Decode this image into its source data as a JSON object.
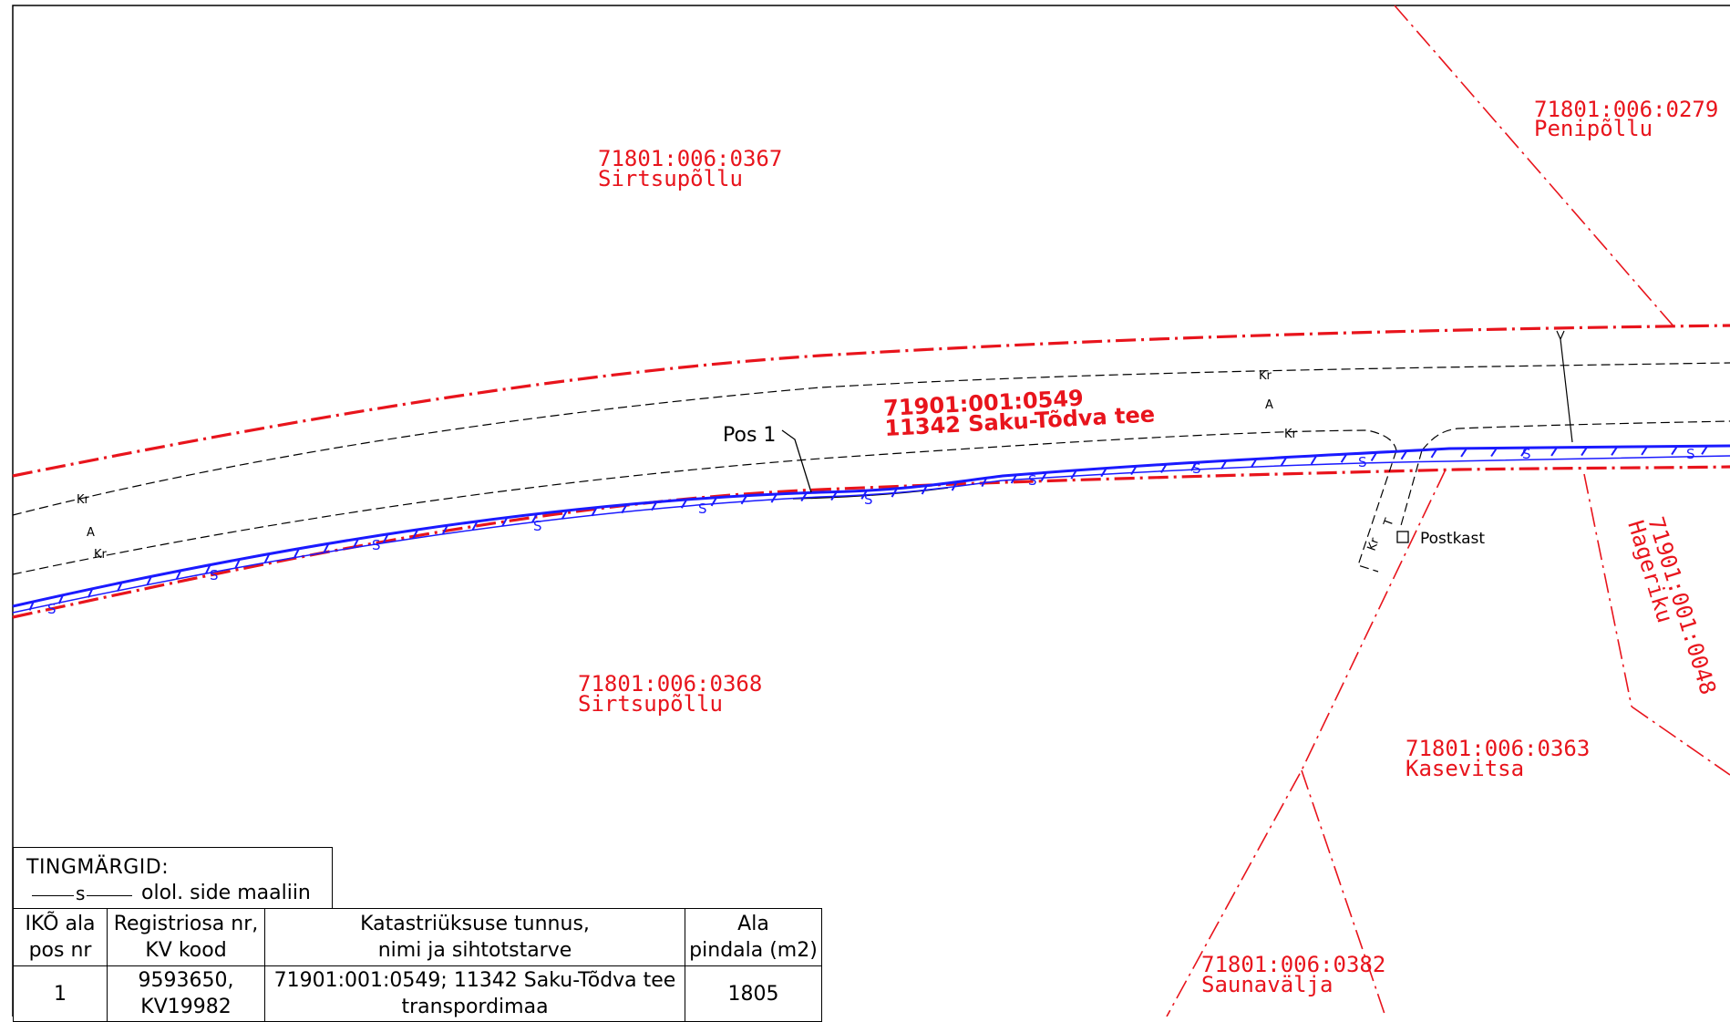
{
  "parcels": [
    {
      "id": "71801:006:0367",
      "name": "Sirtsupõllu"
    },
    {
      "id": "71801:006:0279",
      "name": "Penipõllu"
    },
    {
      "id": "71801:006:0368",
      "name": "Sirtsupõllu"
    },
    {
      "id": "71801:006:0363",
      "name": "Kasevitsa"
    },
    {
      "id": "71801:006:0382",
      "name": "Saunavälja"
    },
    {
      "id": "71901:001:0048",
      "name": "Hageriku"
    }
  ],
  "road": {
    "id": "71901:001:0549",
    "name": "11342 Saku-Tõdva tee"
  },
  "labels": {
    "pos1": "Pos 1",
    "postkast": "Postkast",
    "cable_mark": "S",
    "kr": "Kr",
    "a": "A",
    "t": "T"
  },
  "legend": {
    "title": "TINGMÄRGID:",
    "line_mark": "s",
    "item": "olol. side maaliin"
  },
  "table": {
    "headers": [
      [
        "IKÕ ala",
        "pos nr"
      ],
      [
        "Registriosa nr,",
        "KV kood"
      ],
      [
        "Katastriüksuse tunnus,",
        "nimi ja sihtotstarve"
      ],
      [
        "Ala",
        "pindala (m2)"
      ]
    ],
    "rows": [
      {
        "pos": "1",
        "reg": [
          "9593650,",
          "KV19982"
        ],
        "kat": [
          "71901:001:0549; 11342 Saku-Tõdva tee",
          "transpordimaa"
        ],
        "area": "1805"
      }
    ]
  },
  "colors": {
    "boundary": "#e8141c",
    "cable": "#1a1aff",
    "road_edge": "#000000"
  }
}
